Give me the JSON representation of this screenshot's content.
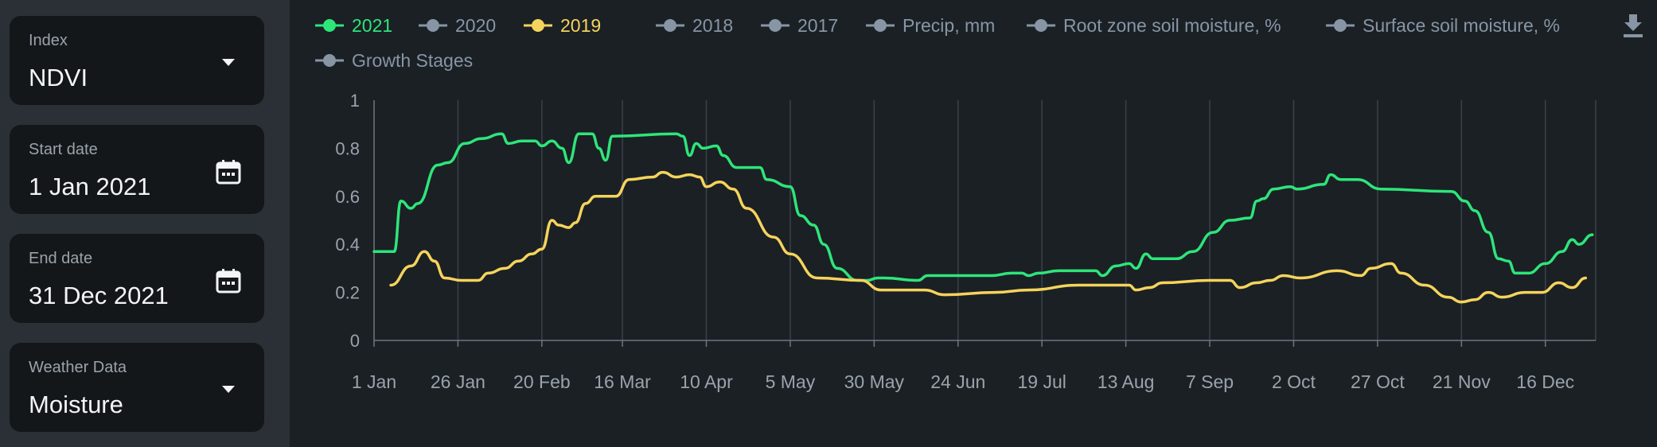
{
  "sidebar": {
    "index": {
      "label": "Index",
      "value": "NDVI",
      "icon": "caret-down-icon"
    },
    "start_date": {
      "label": "Start date",
      "value": "1 Jan 2021",
      "icon": "calendar-icon"
    },
    "end_date": {
      "label": "End date",
      "value": "31 Dec 2021",
      "icon": "calendar-icon"
    },
    "weather": {
      "label": "Weather Data",
      "value": "Moisture",
      "icon": "caret-down-icon"
    }
  },
  "legend": [
    {
      "label": "2021",
      "color": "#2ee57a",
      "active": true
    },
    {
      "label": "2020",
      "color": "#8795a5",
      "active": false
    },
    {
      "label": "2019",
      "color": "#f5d45c",
      "active": true
    },
    {
      "label": "2018",
      "color": "#8795a5",
      "active": false
    },
    {
      "label": "2017",
      "color": "#8795a5",
      "active": false
    },
    {
      "label": "Precip, mm",
      "color": "#8795a5",
      "active": false
    },
    {
      "label": "Root zone soil moisture, %",
      "color": "#8795a5",
      "active": false
    },
    {
      "label": "Surface soil moisture, %",
      "color": "#8795a5",
      "active": false
    },
    {
      "label": "Growth Stages",
      "color": "#8795a5",
      "active": false
    }
  ],
  "download_icon": "download-icon",
  "chart_data": {
    "type": "line",
    "x_ticks": [
      "1 Jan",
      "26 Jan",
      "20 Feb",
      "16 Mar",
      "10 Apr",
      "5 May",
      "30 May",
      "24 Jun",
      "19 Jul",
      "13 Aug",
      "7 Sep",
      "2 Oct",
      "27 Oct",
      "21 Nov",
      "16 Dec"
    ],
    "y_ticks": [
      "0",
      "0.2",
      "0.4",
      "0.6",
      "0.8",
      "1"
    ],
    "ylim": [
      0,
      1
    ],
    "xlim": [
      "1 Jan",
      "31 Dec"
    ],
    "grid": true,
    "series": [
      {
        "name": "2021",
        "color": "#2ee57a",
        "points": [
          [
            "1 Jan",
            0.37
          ],
          [
            "7 Jan",
            0.37
          ],
          [
            "9 Jan",
            0.58
          ],
          [
            "12 Jan",
            0.55
          ],
          [
            "14 Jan",
            0.57
          ],
          [
            "20 Jan",
            0.73
          ],
          [
            "23 Jan",
            0.74
          ],
          [
            "28 Jan",
            0.82
          ],
          [
            "2 Feb",
            0.84
          ],
          [
            "8 Feb",
            0.86
          ],
          [
            "10 Feb",
            0.82
          ],
          [
            "14 Feb",
            0.83
          ],
          [
            "18 Feb",
            0.83
          ],
          [
            "20 Feb",
            0.81
          ],
          [
            "23 Feb",
            0.83
          ],
          [
            "26 Feb",
            0.8
          ],
          [
            "28 Feb",
            0.74
          ],
          [
            "3 Mar",
            0.86
          ],
          [
            "7 Mar",
            0.86
          ],
          [
            "9 Mar",
            0.8
          ],
          [
            "11 Mar",
            0.75
          ],
          [
            "13 Mar",
            0.85
          ],
          [
            "1 Apr",
            0.86
          ],
          [
            "3 Apr",
            0.85
          ],
          [
            "5 Apr",
            0.77
          ],
          [
            "7 Apr",
            0.82
          ],
          [
            "9 Apr",
            0.8
          ],
          [
            "13 Apr",
            0.81
          ],
          [
            "15 Apr",
            0.77
          ],
          [
            "19 Apr",
            0.72
          ],
          [
            "26 Apr",
            0.72
          ],
          [
            "28 Apr",
            0.67
          ],
          [
            "5 May",
            0.64
          ],
          [
            "8 May",
            0.52
          ],
          [
            "12 May",
            0.48
          ],
          [
            "15 May",
            0.4
          ],
          [
            "19 May",
            0.3
          ],
          [
            "25 May",
            0.25
          ],
          [
            "28 May",
            0.25
          ],
          [
            "31 May",
            0.26
          ],
          [
            "2 Jun",
            0.26
          ],
          [
            "12 Jun",
            0.25
          ],
          [
            "15 Jun",
            0.27
          ],
          [
            "4 Jul",
            0.27
          ],
          [
            "10 Jul",
            0.28
          ],
          [
            "13 Jul",
            0.28
          ],
          [
            "15 Jul",
            0.27
          ],
          [
            "18 Jul",
            0.28
          ],
          [
            "24 Jul",
            0.29
          ],
          [
            "4 Aug",
            0.29
          ],
          [
            "6 Aug",
            0.27
          ],
          [
            "10 Aug",
            0.31
          ],
          [
            "14 Aug",
            0.32
          ],
          [
            "16 Aug",
            0.3
          ],
          [
            "19 Aug",
            0.36
          ],
          [
            "21 Aug",
            0.34
          ],
          [
            "28 Aug",
            0.34
          ],
          [
            "2 Sep",
            0.37
          ],
          [
            "8 Sep",
            0.45
          ],
          [
            "13 Sep",
            0.5
          ],
          [
            "19 Sep",
            0.51
          ],
          [
            "21 Sep",
            0.58
          ],
          [
            "23 Sep",
            0.59
          ],
          [
            "26 Sep",
            0.63
          ],
          [
            "1 Oct",
            0.64
          ],
          [
            "3 Oct",
            0.63
          ],
          [
            "11 Oct",
            0.65
          ],
          [
            "13 Oct",
            0.69
          ],
          [
            "16 Oct",
            0.67
          ],
          [
            "21 Oct",
            0.67
          ],
          [
            "28 Oct",
            0.63
          ],
          [
            "18 Nov",
            0.62
          ],
          [
            "22 Nov",
            0.58
          ],
          [
            "25 Nov",
            0.54
          ],
          [
            "29 Nov",
            0.45
          ],
          [
            "2 Dec",
            0.34
          ],
          [
            "5 Dec",
            0.33
          ],
          [
            "7 Dec",
            0.28
          ],
          [
            "11 Dec",
            0.28
          ],
          [
            "16 Dec",
            0.32
          ],
          [
            "21 Dec",
            0.37
          ],
          [
            "24 Dec",
            0.42
          ],
          [
            "26 Dec",
            0.4
          ],
          [
            "30 Dec",
            0.44
          ]
        ]
      },
      {
        "name": "2019",
        "color": "#f5d45c",
        "points": [
          [
            "6 Jan",
            0.23
          ],
          [
            "12 Jan",
            0.31
          ],
          [
            "16 Jan",
            0.37
          ],
          [
            "19 Jan",
            0.33
          ],
          [
            "22 Jan",
            0.26
          ],
          [
            "27 Jan",
            0.25
          ],
          [
            "1 Feb",
            0.25
          ],
          [
            "4 Feb",
            0.28
          ],
          [
            "9 Feb",
            0.3
          ],
          [
            "13 Feb",
            0.33
          ],
          [
            "17 Feb",
            0.36
          ],
          [
            "20 Feb",
            0.38
          ],
          [
            "23 Feb",
            0.5
          ],
          [
            "25 Feb",
            0.48
          ],
          [
            "28 Feb",
            0.47
          ],
          [
            "2 Mar",
            0.49
          ],
          [
            "5 Mar",
            0.57
          ],
          [
            "8 Mar",
            0.6
          ],
          [
            "14 Mar",
            0.6
          ],
          [
            "18 Mar",
            0.67
          ],
          [
            "25 Mar",
            0.68
          ],
          [
            "28 Mar",
            0.7
          ],
          [
            "1 Apr",
            0.68
          ],
          [
            "5 Apr",
            0.69
          ],
          [
            "8 Apr",
            0.68
          ],
          [
            "10 Apr",
            0.64
          ],
          [
            "14 Apr",
            0.66
          ],
          [
            "18 Apr",
            0.63
          ],
          [
            "22 Apr",
            0.55
          ],
          [
            "30 Apr",
            0.43
          ],
          [
            "5 May",
            0.36
          ],
          [
            "13 May",
            0.26
          ],
          [
            "26 May",
            0.25
          ],
          [
            "1 Jun",
            0.21
          ],
          [
            "14 Jun",
            0.21
          ],
          [
            "20 Jun",
            0.19
          ],
          [
            "5 Jul",
            0.2
          ],
          [
            "15 Jul",
            0.21
          ],
          [
            "30 Jul",
            0.23
          ],
          [
            "14 Aug",
            0.23
          ],
          [
            "16 Aug",
            0.21
          ],
          [
            "20 Aug",
            0.22
          ],
          [
            "24 Aug",
            0.24
          ],
          [
            "7 Sep",
            0.25
          ],
          [
            "13 Sep",
            0.25
          ],
          [
            "16 Sep",
            0.22
          ],
          [
            "21 Sep",
            0.24
          ],
          [
            "25 Sep",
            0.25
          ],
          [
            "29 Sep",
            0.27
          ],
          [
            "4 Oct",
            0.26
          ],
          [
            "15 Oct",
            0.29
          ],
          [
            "22 Oct",
            0.27
          ],
          [
            "25 Oct",
            0.3
          ],
          [
            "31 Oct",
            0.32
          ],
          [
            "3 Nov",
            0.28
          ],
          [
            "10 Nov",
            0.23
          ],
          [
            "17 Nov",
            0.18
          ],
          [
            "21 Nov",
            0.16
          ],
          [
            "25 Nov",
            0.17
          ],
          [
            "29 Nov",
            0.2
          ],
          [
            "3 Dec",
            0.18
          ],
          [
            "10 Dec",
            0.2
          ],
          [
            "15 Dec",
            0.2
          ],
          [
            "20 Dec",
            0.24
          ],
          [
            "24 Dec",
            0.22
          ],
          [
            "28 Dec",
            0.26
          ]
        ]
      }
    ]
  }
}
